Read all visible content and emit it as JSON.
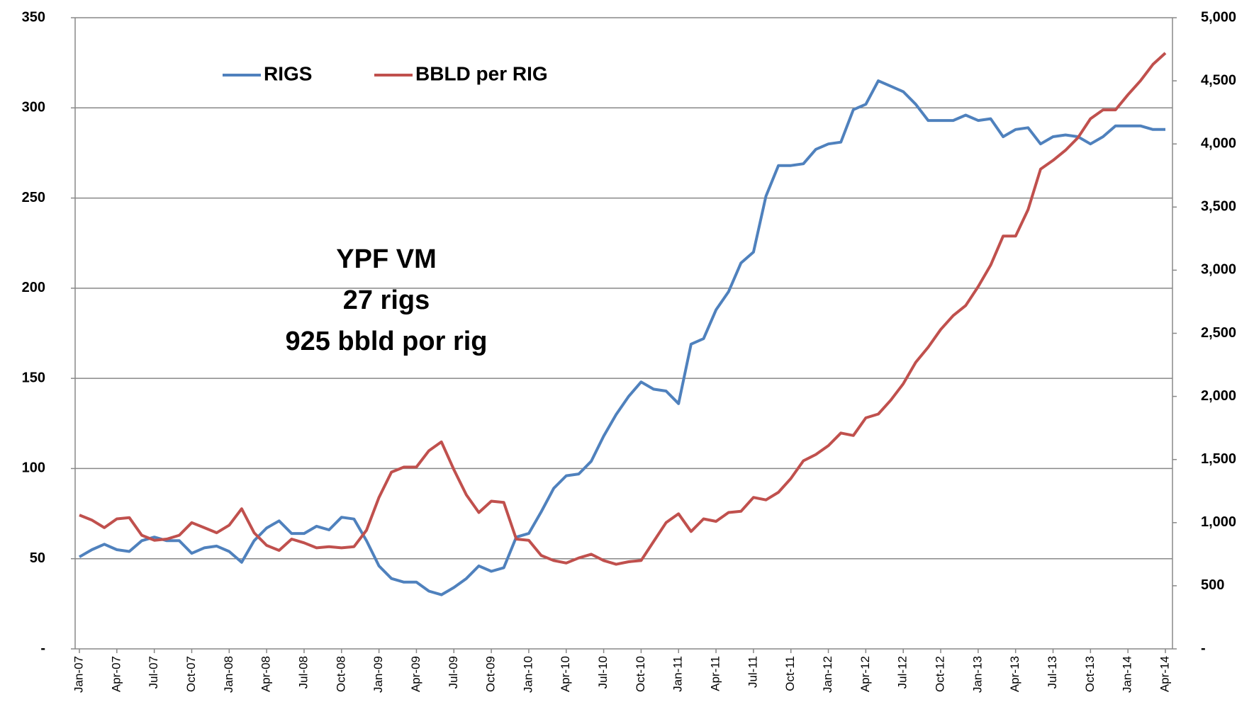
{
  "chart_data": {
    "type": "line",
    "annotations": [
      "YPF VM",
      "27 rigs",
      "925 bbld por rig"
    ],
    "categories": [
      "Jan-07",
      null,
      null,
      "Apr-07",
      null,
      null,
      "Jul-07",
      null,
      null,
      "Oct-07",
      null,
      null,
      "Jan-08",
      null,
      null,
      "Apr-08",
      null,
      null,
      "Jul-08",
      null,
      null,
      "Oct-08",
      null,
      null,
      "Jan-09",
      null,
      null,
      "Apr-09",
      null,
      null,
      "Jul-09",
      null,
      null,
      "Oct-09",
      null,
      null,
      "Jan-10",
      null,
      null,
      "Apr-10",
      null,
      null,
      "Jul-10",
      null,
      null,
      "Oct-10",
      null,
      null,
      "Jan-11",
      null,
      null,
      "Apr-11",
      null,
      null,
      "Jul-11",
      null,
      null,
      "Oct-11",
      null,
      null,
      "Jan-12",
      null,
      null,
      "Apr-12",
      null,
      null,
      "Jul-12",
      null,
      null,
      "Oct-12",
      null,
      null,
      "Jan-13",
      null,
      null,
      "Apr-13",
      null,
      null,
      "Jul-13",
      null,
      null,
      "Oct-13",
      null,
      null,
      "Jan-14",
      null,
      null,
      "Apr-14"
    ],
    "series": [
      {
        "name": "RIGS",
        "color": "#4f81bd",
        "values": [
          51,
          55,
          58,
          55,
          54,
          60,
          62,
          60,
          60,
          53,
          56,
          57,
          54,
          48,
          60,
          67,
          71,
          64,
          64,
          68,
          66,
          73,
          72,
          60,
          46,
          39,
          37,
          37,
          32,
          30,
          34,
          39,
          46,
          43,
          45,
          62,
          64,
          76,
          89,
          96,
          97,
          104,
          118,
          130,
          140,
          148,
          144,
          143,
          136,
          169,
          172,
          188,
          198,
          214,
          220,
          251,
          268,
          268,
          269,
          277,
          280,
          281,
          299,
          302,
          315,
          312,
          309,
          302,
          293,
          293,
          293,
          296,
          293,
          294,
          284,
          288,
          289,
          280,
          284,
          285,
          284,
          280,
          284,
          290,
          290,
          290,
          288,
          288
        ]
      },
      {
        "name": "BBLD per RIG",
        "color": "#c0504d",
        "axis": "y2",
        "values": [
          1060,
          1020,
          960,
          1030,
          1040,
          900,
          860,
          870,
          900,
          1000,
          960,
          920,
          980,
          1110,
          920,
          820,
          780,
          870,
          840,
          800,
          810,
          800,
          810,
          940,
          1200,
          1400,
          1440,
          1440,
          1570,
          1640,
          1420,
          1220,
          1080,
          1170,
          1160,
          870,
          860,
          740,
          700,
          680,
          720,
          750,
          700,
          670,
          690,
          700,
          850,
          1000,
          1070,
          930,
          1030,
          1010,
          1080,
          1090,
          1200,
          1180,
          1240,
          1350,
          1490,
          1540,
          1610,
          1710,
          1690,
          1830,
          1860,
          1970,
          2100,
          2270,
          2390,
          2530,
          2640,
          2720,
          2870,
          3040,
          3270,
          3270,
          3480,
          3800,
          3870,
          3950,
          4050,
          4200,
          4270,
          4270,
          4390,
          4500,
          4630,
          4720
        ]
      }
    ],
    "ylim": [
      0,
      350
    ],
    "yticks": [
      {
        "value": 0,
        "label": "-"
      },
      50,
      100,
      150,
      200,
      250,
      300,
      350
    ],
    "y2lim": [
      0,
      5000
    ],
    "y2ticks": [
      {
        "value": 0,
        "label": "-"
      },
      500,
      {
        "value": 1000,
        "label": "1,000"
      },
      {
        "value": 1500,
        "label": "1,500"
      },
      {
        "value": 2000,
        "label": "2,000"
      },
      {
        "value": 2500,
        "label": "2,500"
      },
      {
        "value": 3000,
        "label": "3,000"
      },
      {
        "value": 3500,
        "label": "3,500"
      },
      {
        "value": 4000,
        "label": "4,000"
      },
      {
        "value": 4500,
        "label": "4,500"
      },
      {
        "value": 5000,
        "label": "5,000"
      }
    ],
    "grid": true
  }
}
